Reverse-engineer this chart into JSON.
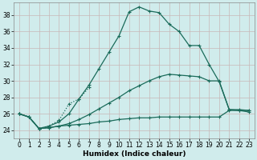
{
  "xlabel": "Humidex (Indice chaleur)",
  "xlim": [
    -0.5,
    23.5
  ],
  "ylim": [
    23.0,
    39.5
  ],
  "xticks": [
    0,
    1,
    2,
    3,
    4,
    5,
    6,
    7,
    8,
    9,
    10,
    11,
    12,
    13,
    14,
    15,
    16,
    17,
    18,
    19,
    20,
    21,
    22,
    23
  ],
  "yticks": [
    24,
    26,
    28,
    30,
    32,
    34,
    36,
    38
  ],
  "bg_color": "#d0ecec",
  "grid_color": "#c0c8c8",
  "line_color": "#1a6b5a",
  "line1_x": [
    0,
    1,
    2,
    3,
    4,
    5,
    6,
    7
  ],
  "line1_y": [
    26.0,
    25.6,
    24.2,
    24.5,
    25.2,
    27.2,
    27.8,
    29.2
  ],
  "line2_x": [
    0,
    1,
    2,
    3,
    4,
    5,
    6,
    7,
    8,
    9,
    10,
    11,
    12,
    13,
    14,
    15,
    16,
    17,
    18,
    19,
    20,
    21,
    22,
    23
  ],
  "line2_y": [
    26.0,
    25.6,
    24.2,
    24.3,
    24.5,
    24.6,
    24.7,
    24.8,
    25.0,
    25.1,
    25.3,
    25.4,
    25.5,
    25.5,
    25.6,
    25.6,
    25.6,
    25.6,
    25.6,
    25.6,
    25.6,
    26.4,
    26.4,
    26.4
  ],
  "line3_x": [
    0,
    1,
    2,
    3,
    4,
    5,
    6,
    7,
    8,
    9,
    10,
    11,
    12,
    13,
    14,
    15,
    16,
    17,
    18,
    19,
    20,
    21,
    22,
    23
  ],
  "line3_y": [
    26.0,
    25.6,
    24.2,
    24.3,
    24.5,
    24.8,
    25.3,
    25.9,
    26.6,
    27.3,
    28.0,
    28.8,
    29.4,
    30.0,
    30.5,
    30.8,
    30.7,
    30.6,
    30.5,
    30.0,
    30.0,
    26.5,
    26.5,
    26.4
  ],
  "line4_x": [
    0,
    1,
    2,
    3,
    4,
    5,
    6,
    7,
    8,
    9,
    10,
    11,
    12,
    13,
    14,
    15,
    16,
    17,
    18,
    19,
    20,
    21,
    22,
    23
  ],
  "line4_y": [
    26.0,
    25.6,
    24.2,
    24.5,
    25.0,
    26.0,
    27.8,
    29.5,
    31.5,
    33.5,
    35.5,
    38.4,
    39.0,
    38.5,
    38.3,
    36.9,
    36.0,
    34.3,
    34.3,
    32.0,
    29.9,
    26.5,
    26.4,
    26.2
  ]
}
